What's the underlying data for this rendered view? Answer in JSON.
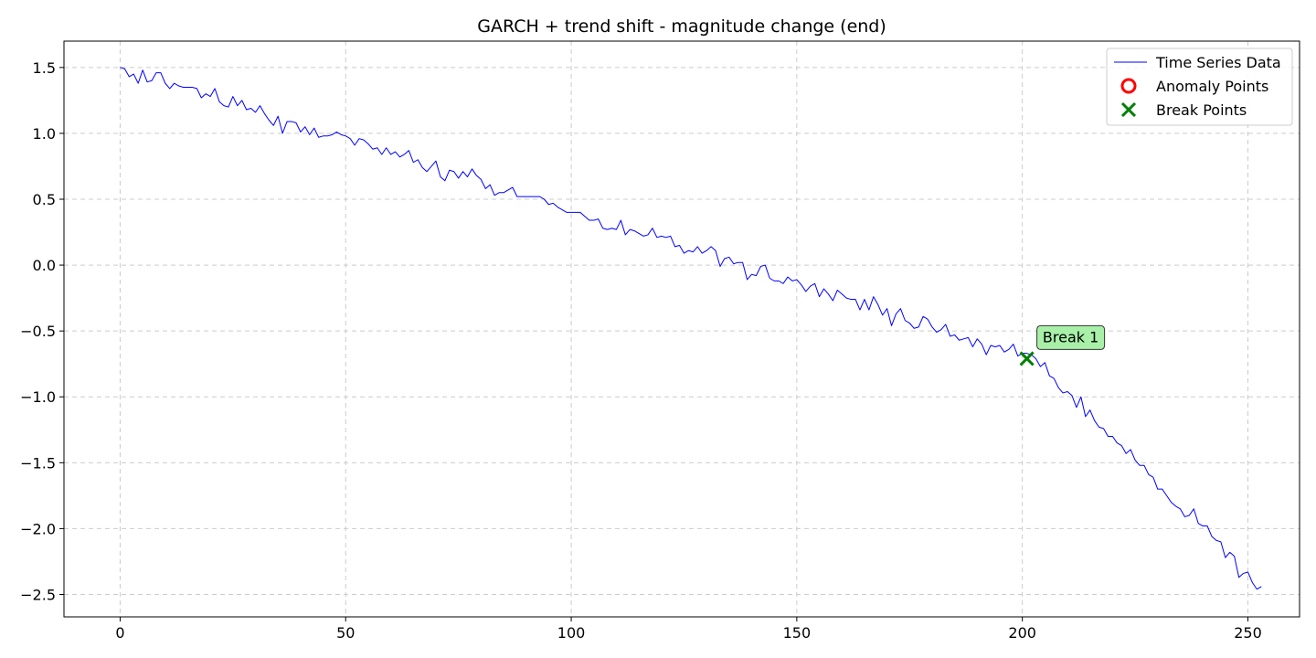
{
  "chart_data": {
    "type": "line",
    "title": "GARCH + trend shift - magnitude change (end)",
    "xlabel": "",
    "ylabel": "",
    "xlim": [
      -12.45,
      261.45
    ],
    "ylim": [
      -2.67,
      1.7
    ],
    "grid": true,
    "legend_placement": "top-right",
    "x_ticks": [
      0,
      50,
      100,
      150,
      200,
      250
    ],
    "y_ticks": [
      1.5,
      1.0,
      0.5,
      0.0,
      -0.5,
      -1.0,
      -1.5,
      -2.0,
      -2.5
    ],
    "x_tick_labels": [
      "0",
      "50",
      "100",
      "150",
      "200",
      "250"
    ],
    "y_tick_labels": [
      "1.5",
      "1.0",
      "0.5",
      "0.0",
      "−0.5",
      "−1.0",
      "−1.5",
      "−2.0",
      "−2.5"
    ],
    "series": [
      {
        "name": "Time Series Data",
        "color": "#0000ff",
        "values": [
          1.5,
          1.49,
          1.43,
          1.45,
          1.38,
          1.48,
          1.39,
          1.4,
          1.46,
          1.46,
          1.38,
          1.34,
          1.38,
          1.36,
          1.35,
          1.35,
          1.35,
          1.34,
          1.27,
          1.3,
          1.28,
          1.34,
          1.24,
          1.21,
          1.2,
          1.28,
          1.21,
          1.25,
          1.18,
          1.19,
          1.16,
          1.21,
          1.15,
          1.1,
          1.06,
          1.13,
          1.0,
          1.09,
          1.09,
          1.08,
          1.01,
          1.05,
          0.99,
          1.04,
          0.97,
          0.98,
          0.98,
          0.99,
          1.01,
          0.99,
          0.98,
          0.96,
          0.91,
          0.96,
          0.95,
          0.92,
          0.88,
          0.89,
          0.84,
          0.89,
          0.84,
          0.86,
          0.82,
          0.84,
          0.87,
          0.78,
          0.8,
          0.74,
          0.71,
          0.75,
          0.79,
          0.67,
          0.64,
          0.72,
          0.71,
          0.66,
          0.71,
          0.67,
          0.73,
          0.68,
          0.65,
          0.58,
          0.61,
          0.53,
          0.55,
          0.55,
          0.57,
          0.59,
          0.52,
          0.52,
          0.52,
          0.52,
          0.52,
          0.52,
          0.5,
          0.46,
          0.47,
          0.44,
          0.42,
          0.4,
          0.4,
          0.4,
          0.4,
          0.37,
          0.34,
          0.34,
          0.35,
          0.28,
          0.27,
          0.28,
          0.27,
          0.34,
          0.23,
          0.27,
          0.26,
          0.24,
          0.22,
          0.23,
          0.28,
          0.21,
          0.22,
          0.21,
          0.22,
          0.14,
          0.15,
          0.09,
          0.11,
          0.1,
          0.14,
          0.09,
          0.11,
          0.14,
          0.11,
          -0.01,
          0.05,
          0.06,
          0.01,
          0.02,
          0.02,
          -0.11,
          -0.07,
          -0.08,
          -0.01,
          0.0,
          -0.1,
          -0.12,
          -0.12,
          -0.14,
          -0.09,
          -0.12,
          -0.11,
          -0.15,
          -0.2,
          -0.16,
          -0.14,
          -0.24,
          -0.18,
          -0.22,
          -0.27,
          -0.19,
          -0.22,
          -0.25,
          -0.26,
          -0.26,
          -0.34,
          -0.26,
          -0.34,
          -0.24,
          -0.3,
          -0.38,
          -0.33,
          -0.46,
          -0.37,
          -0.33,
          -0.42,
          -0.44,
          -0.48,
          -0.47,
          -0.39,
          -0.41,
          -0.47,
          -0.51,
          -0.49,
          -0.45,
          -0.54,
          -0.53,
          -0.57,
          -0.56,
          -0.55,
          -0.62,
          -0.56,
          -0.6,
          -0.68,
          -0.61,
          -0.62,
          -0.61,
          -0.66,
          -0.64,
          -0.6,
          -0.69,
          -0.67,
          -0.67,
          -0.68,
          -0.71,
          -0.77,
          -0.74,
          -0.84,
          -0.86,
          -0.93,
          -0.97,
          -0.96,
          -0.99,
          -1.08,
          -1.0,
          -1.15,
          -1.1,
          -1.18,
          -1.23,
          -1.24,
          -1.3,
          -1.3,
          -1.35,
          -1.37,
          -1.43,
          -1.4,
          -1.48,
          -1.52,
          -1.52,
          -1.59,
          -1.61,
          -1.7,
          -1.7,
          -1.75,
          -1.8,
          -1.83,
          -1.85,
          -1.91,
          -1.9,
          -1.85,
          -1.96,
          -1.98,
          -1.98,
          -2.06,
          -2.09,
          -2.1,
          -2.22,
          -2.18,
          -2.21,
          -2.37,
          -2.34,
          -2.33,
          -2.41,
          -2.46,
          -2.44
        ]
      }
    ],
    "legend": [
      {
        "label": "Time Series Data",
        "marker": "line",
        "color": "#0000ff"
      },
      {
        "label": "Anomaly Points",
        "marker": "circle",
        "color": "#ff0000"
      },
      {
        "label": "Break Points",
        "marker": "x",
        "color": "#008000"
      }
    ],
    "anomaly_points": [],
    "break_points": [
      {
        "x": 201,
        "y": -0.71,
        "label": "Break 1",
        "color": "#008000",
        "box_color": "#a8f0a8"
      }
    ]
  }
}
